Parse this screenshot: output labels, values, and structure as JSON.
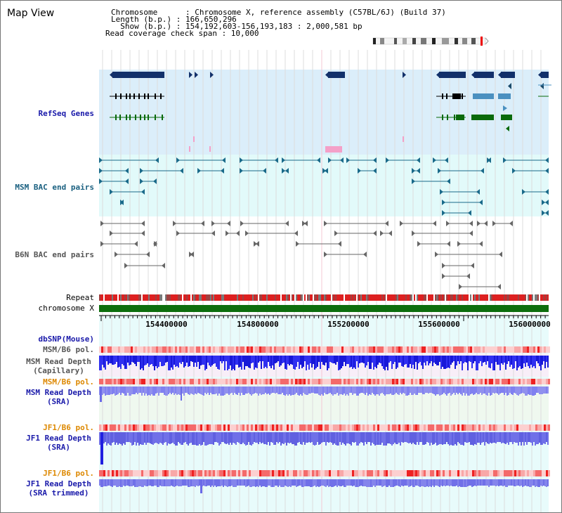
{
  "title": "Map View",
  "header": {
    "chromosome_line": "Chromosome      : Chromosome X, reference assembly (C57BL/6J) (Build 37)",
    "length_line": "Length (b.p.) : 166,650,296",
    "show_line": "  Show (b.p.) : 154,192,603-156,193,183 : 2,000,581 bp",
    "coverage_line": "Read coverage check span : 10,000"
  },
  "tracks": {
    "refseq": "RefSeq Genes",
    "msm_bac": "MSM BAC end pairs",
    "b6n_bac": "B6N BAC end pairs",
    "repeat": "Repeat",
    "chromosome": "chromosome X",
    "dbsnp": "dbSNP(Mouse)",
    "msm_b6_pol_1": "MSM/B6 pol.",
    "msm_depth_cap_1": "MSM Read Depth",
    "msm_depth_cap_2": "(Capillary)",
    "msm_b6_pol_2": "MSM/B6 pol.",
    "msm_depth_sra_1": "MSM Read Depth",
    "msm_depth_sra_2": "(SRA)",
    "jf1_b6_pol_1": "JF1/B6 pol.",
    "jf1_depth_sra_1": "JF1 Read Depth",
    "jf1_depth_sra_2": "(SRA)",
    "jf1_b6_pol_2": "JF1/B6 pol.",
    "jf1_depth_trim_1": "JF1 Read Depth",
    "jf1_depth_trim_2": "(SRA trimmed)"
  },
  "axis_ticks": [
    "154400000",
    "154800000",
    "155200000",
    "155600000",
    "156000000"
  ],
  "colors": {
    "refseq_bg": "#dbeefa",
    "bac_bg": "#e2fafa",
    "gene_navy": "#12306a",
    "gene_teal": "#4a90c0",
    "gene_green": "#0a6a0a",
    "chromosome_bar": "#0d6e0d",
    "label_blue": "#1a1aaa",
    "label_teal": "#1a6080",
    "label_gray": "#555555",
    "label_orange": "#dd8800"
  }
}
